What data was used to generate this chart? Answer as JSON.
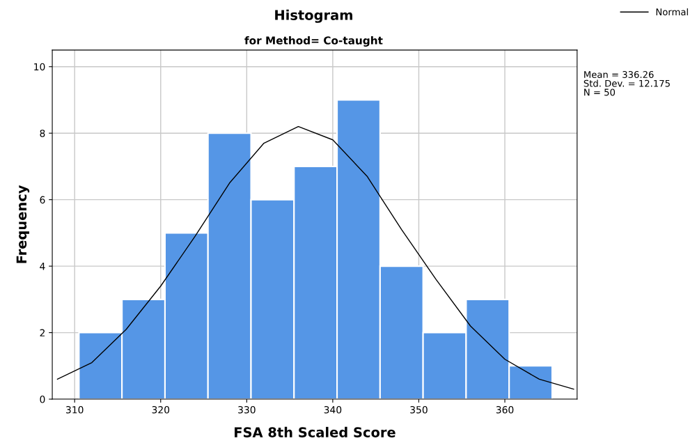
{
  "chart_data": {
    "type": "histogram",
    "title": "Histogram",
    "subtitle": "for Method= Co-taught",
    "xlabel": "FSA 8th Scaled Score",
    "ylabel": "Frequency",
    "bins": [
      310.5,
      315.5,
      320.5,
      325.5,
      330.5,
      335.5,
      340.5,
      345.5,
      350.5,
      355.5,
      360.5,
      365.5
    ],
    "series": [
      {
        "color": "#5596e6",
        "values": [
          2,
          3,
          5,
          8,
          6,
          7,
          9,
          4,
          2,
          3,
          1
        ]
      },
      {
        "type": "line",
        "name": "Normal",
        "color": "#000000",
        "x": [
          308,
          312,
          316,
          320,
          324,
          328,
          332,
          336,
          340,
          344,
          348,
          352,
          356,
          360,
          364,
          368
        ],
        "values": [
          0.6,
          1.1,
          2.1,
          3.4,
          4.9,
          6.5,
          7.7,
          8.2,
          7.8,
          6.7,
          5.1,
          3.6,
          2.2,
          1.2,
          0.6,
          0.3
        ]
      }
    ],
    "xlim": [
      307.4,
      368.4
    ],
    "xticks": [
      310,
      320,
      330,
      340,
      350,
      360
    ],
    "ylim": [
      0,
      10.5
    ],
    "yticks": [
      0,
      2,
      4,
      6,
      8,
      10
    ],
    "grid": true,
    "legend": "top right",
    "marker": "none",
    "line_style": "solid",
    "annotations": [
      "Mean = 336.26",
      "Std. Dev. = 12.175",
      "N = 50"
    ]
  }
}
